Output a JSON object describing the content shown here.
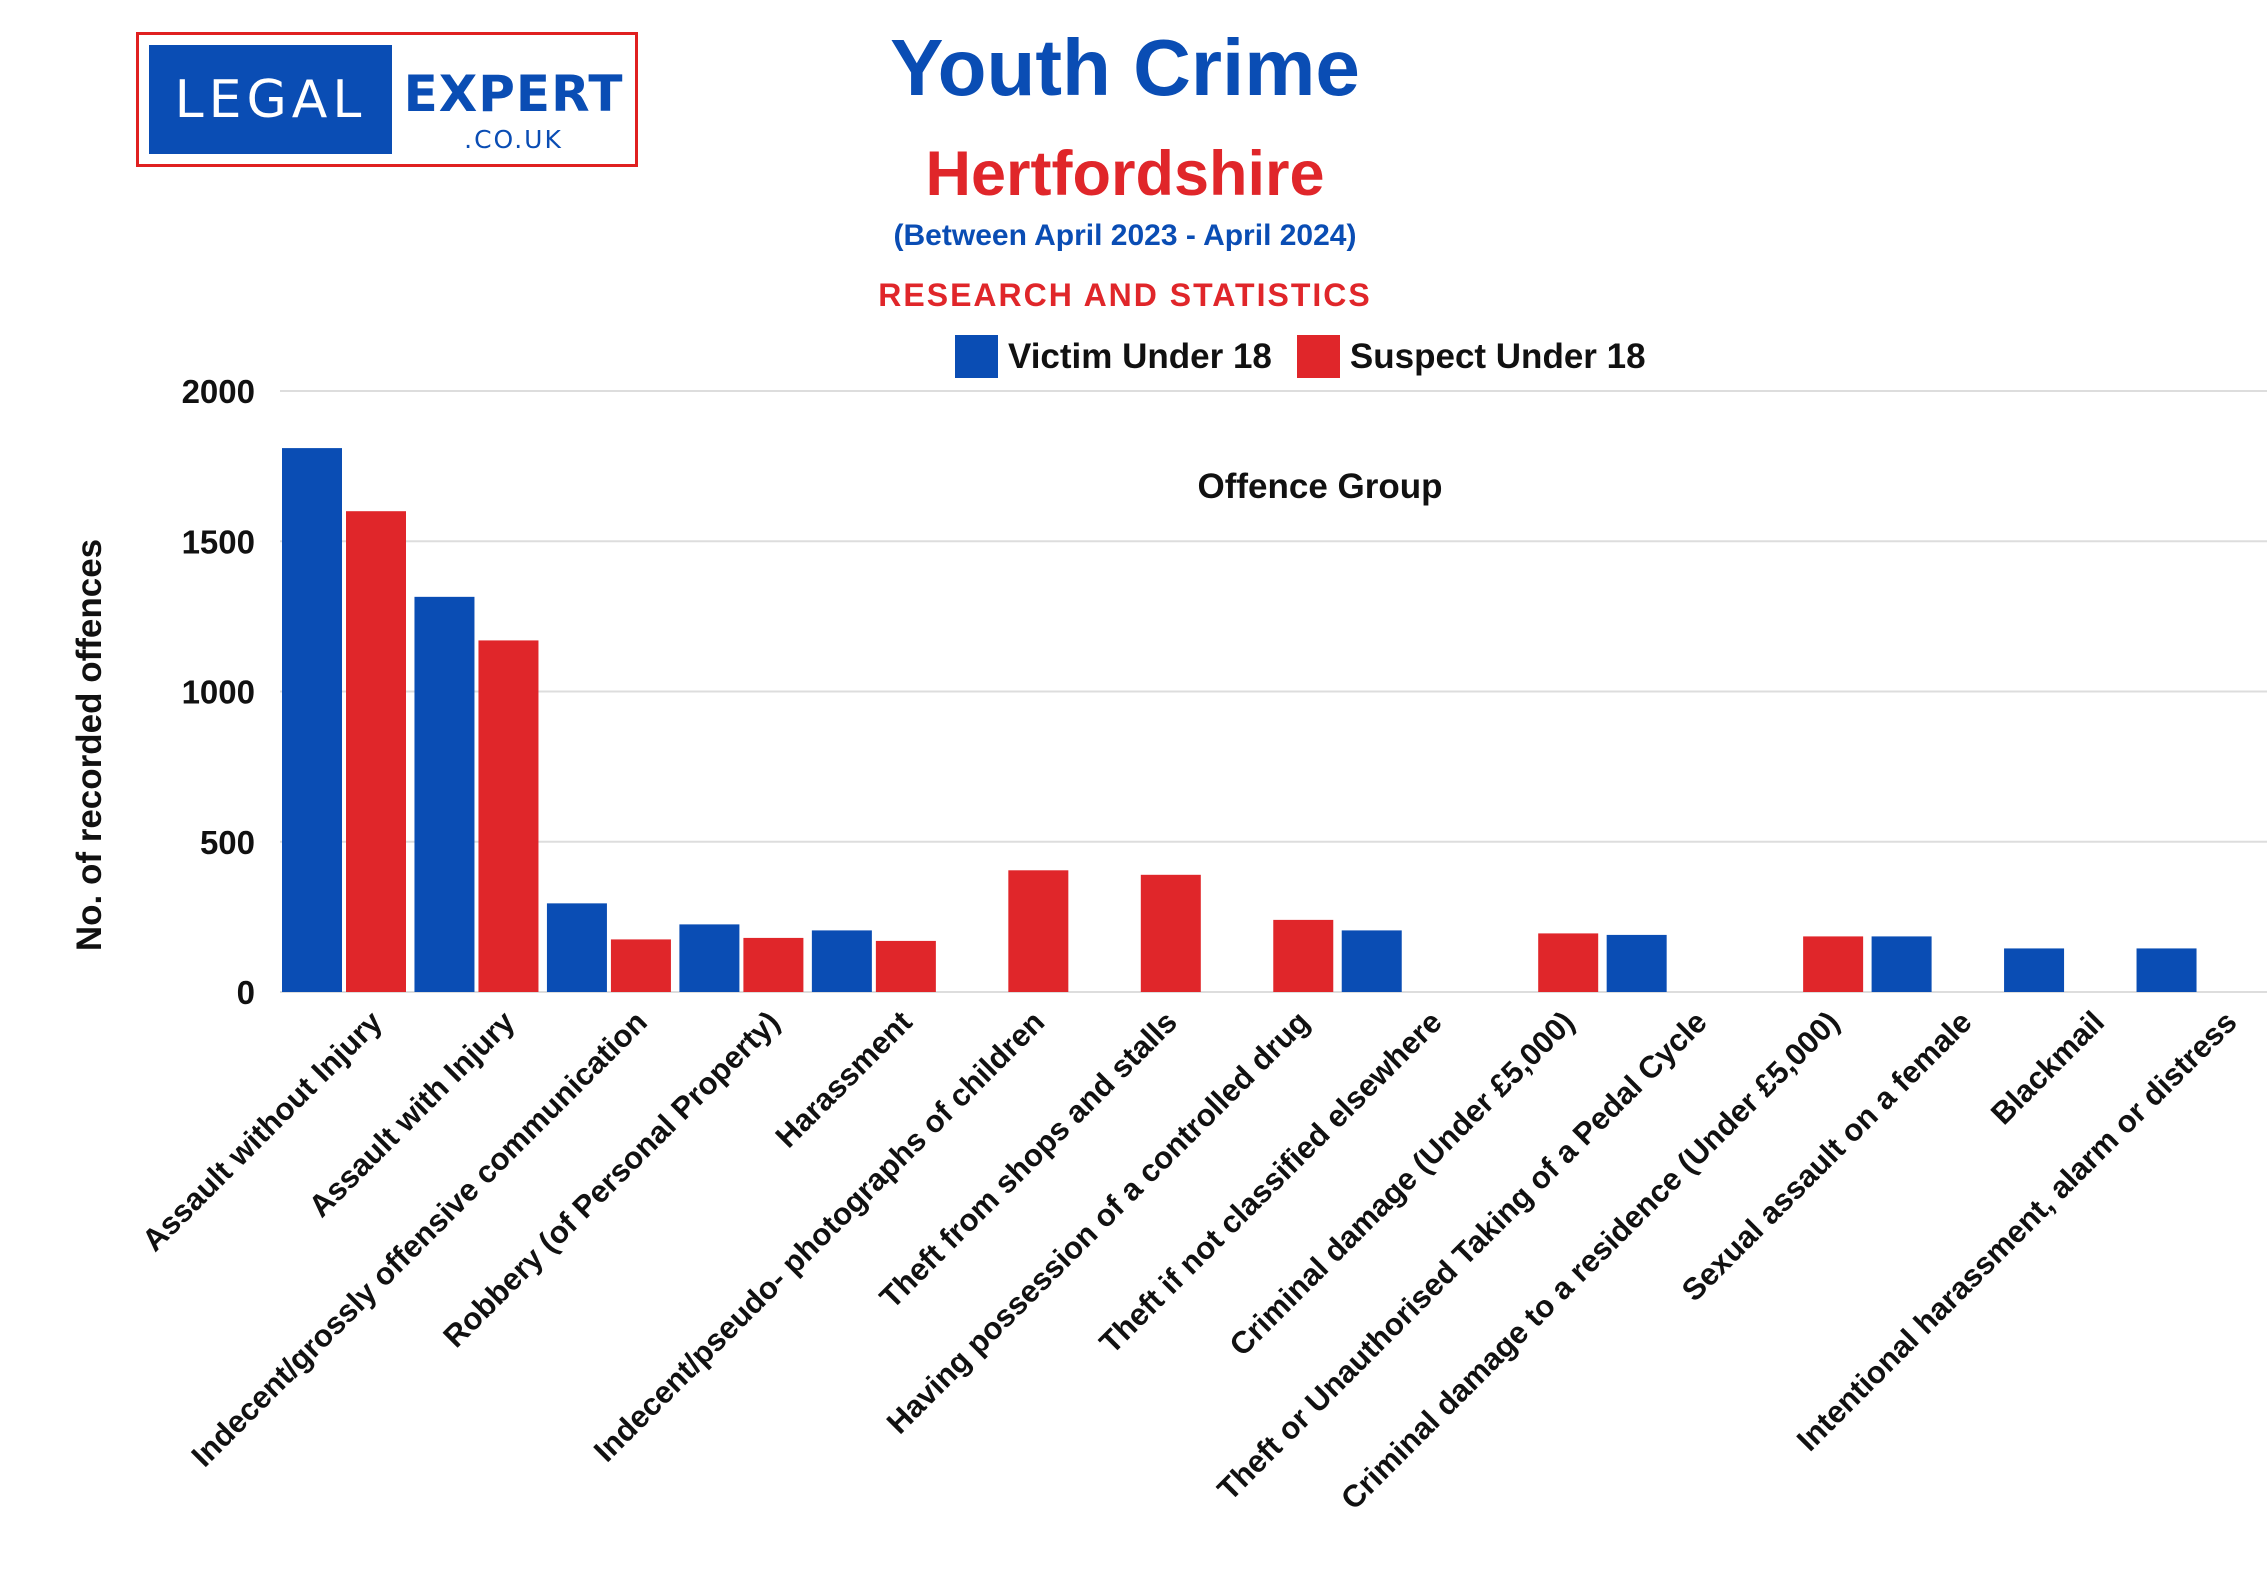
{
  "logo": {
    "word1": "LEGAL",
    "word2": "EXPERT",
    "word3": ".CO.UK"
  },
  "header": {
    "title": "Youth Crime",
    "subtitle": "Hertfordshire",
    "period": "(Between April 2023 - April 2024)",
    "research": "RESEARCH AND STATISTICS"
  },
  "colors": {
    "victim": "#0a4db4",
    "suspect": "#e0262a",
    "grid": "#dddddd"
  },
  "chart_data": {
    "type": "bar",
    "title": "Offence Group",
    "xlabel": "",
    "ylabel": "No. of recorded offences",
    "ylim": [
      0,
      2000
    ],
    "yticks": [
      0,
      500,
      1000,
      1500,
      2000
    ],
    "legend_position": "top-center",
    "categories": [
      "Assault without Injury",
      "Assault with Injury",
      "Indecent/grossly offensive communication",
      "Robbery (of Personal Property)",
      "Harassment",
      "Indecent/pseudo- photographs of children",
      "Theft from shops and stalls",
      "Having possession of a controlled drug",
      "Theft if not classified elsewhere",
      "Criminal damage (Under £5,000)",
      "Theft or Unauthorised Taking of a Pedal Cycle",
      "Criminal damage to a residence (Under £5,000)",
      "Sexual assault on a female",
      "Blackmail",
      "Intentional harassment, alarm or distress"
    ],
    "series": [
      {
        "name": "Victim Under 18",
        "values": [
          1810,
          1315,
          295,
          225,
          205,
          null,
          null,
          null,
          205,
          null,
          190,
          null,
          185,
          145,
          145
        ]
      },
      {
        "name": "Suspect Under 18",
        "values": [
          1600,
          1170,
          175,
          180,
          170,
          405,
          390,
          240,
          null,
          195,
          null,
          185,
          null,
          null,
          null
        ]
      }
    ]
  }
}
